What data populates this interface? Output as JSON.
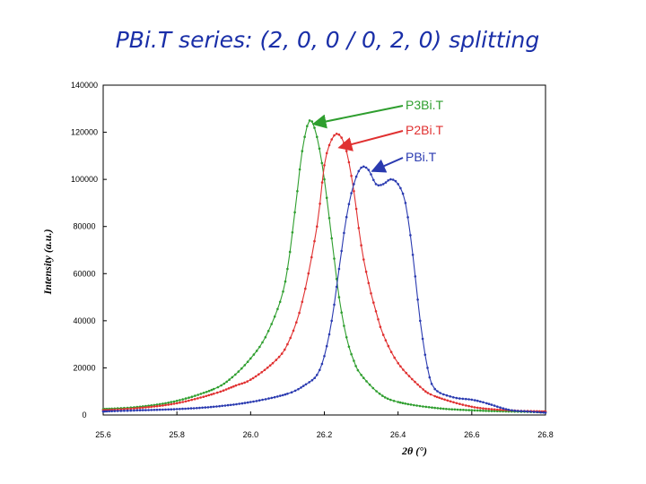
{
  "chart_data": {
    "type": "line",
    "title": "PBi.T series: (2, 0, 0 / 0, 2, 0) splitting",
    "xlabel": "2θ (°)",
    "ylabel": "Intensity (a.u.)",
    "xlim": [
      25.6,
      26.8
    ],
    "ylim": [
      0,
      140000
    ],
    "xticks": [
      "25.6",
      "25.8",
      "26.0",
      "26.2",
      "26.4",
      "26.6",
      "26.8"
    ],
    "yticks": [
      "0",
      "20000",
      "40000",
      "60000",
      "80000",
      "100000",
      "120000",
      "140000"
    ],
    "grid": false,
    "series": [
      {
        "name": "P3Bi.T",
        "color": "#2e9e2e",
        "x": [
          25.6,
          25.7,
          25.8,
          25.9,
          25.95,
          26.0,
          26.04,
          26.08,
          26.1,
          26.12,
          26.14,
          26.16,
          26.18,
          26.2,
          26.22,
          26.24,
          26.26,
          26.28,
          26.3,
          26.35,
          26.4,
          26.5,
          26.6,
          26.7,
          26.8
        ],
        "y": [
          2500,
          3500,
          6000,
          11000,
          16000,
          24000,
          33000,
          48000,
          62000,
          86000,
          112000,
          125000,
          118000,
          100000,
          75000,
          50000,
          33000,
          23000,
          17000,
          9000,
          5500,
          3000,
          2000,
          1500,
          1200
        ]
      },
      {
        "name": "P2Bi.T",
        "color": "#e03030",
        "x": [
          25.6,
          25.7,
          25.8,
          25.9,
          25.96,
          26.0,
          26.06,
          26.1,
          26.14,
          26.18,
          26.2,
          26.22,
          26.24,
          26.26,
          26.28,
          26.3,
          26.32,
          26.34,
          26.36,
          26.4,
          26.46,
          26.5,
          26.6,
          26.7,
          26.8
        ],
        "y": [
          2000,
          3000,
          5000,
          9000,
          12500,
          15000,
          22000,
          30000,
          48000,
          80000,
          106000,
          117000,
          119000,
          112000,
          95000,
          72000,
          56000,
          44000,
          34000,
          22000,
          12000,
          8000,
          3500,
          2000,
          1500
        ]
      },
      {
        "name": "PBi.T",
        "color": "#2a3ab0",
        "x": [
          25.6,
          25.7,
          25.8,
          25.9,
          26.0,
          26.1,
          26.15,
          26.18,
          26.2,
          26.22,
          26.24,
          26.26,
          26.28,
          26.3,
          26.32,
          26.34,
          26.36,
          26.38,
          26.4,
          26.42,
          26.44,
          26.46,
          26.48,
          26.5,
          26.55,
          26.6,
          26.64,
          26.7,
          26.75,
          26.8
        ],
        "y": [
          1500,
          2000,
          2500,
          3500,
          5500,
          9000,
          13000,
          17000,
          25000,
          40000,
          62000,
          84000,
          98000,
          105000,
          104000,
          98000,
          98000,
          100000,
          98000,
          90000,
          68000,
          40000,
          20000,
          11000,
          7500,
          6500,
          5000,
          2200,
          1500,
          1000
        ]
      }
    ],
    "annotations": [
      {
        "label": "P3Bi.T",
        "color": "#2e9e2e",
        "x": 26.17,
        "y": 123500
      },
      {
        "label": "P2Bi.T",
        "color": "#e03030",
        "x": 26.24,
        "y": 113500
      },
      {
        "label": "PBi.T",
        "color": "#2a3ab0",
        "x": 26.33,
        "y": 103500
      }
    ]
  }
}
